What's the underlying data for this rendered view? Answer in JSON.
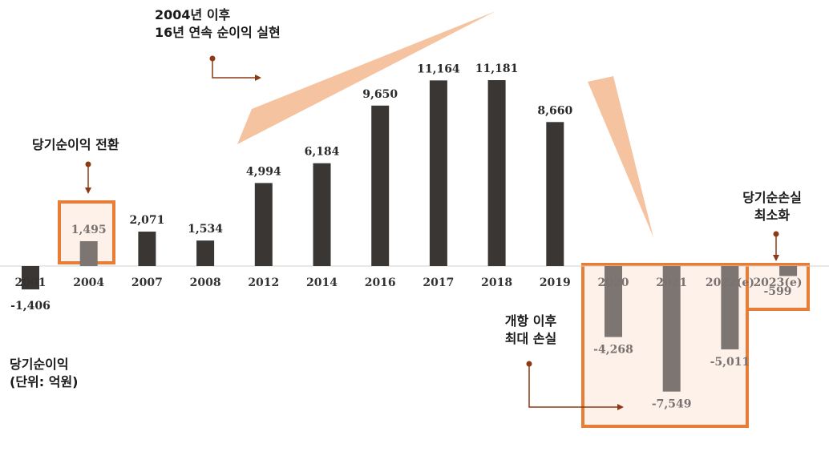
{
  "chart_data": {
    "type": "bar",
    "categories": [
      "2001",
      "2004",
      "2007",
      "2008",
      "2012",
      "2014",
      "2016",
      "2017",
      "2018",
      "2019",
      "2020",
      "2021",
      "2022(e)",
      "2023(e)"
    ],
    "values": [
      -1406,
      1495,
      2071,
      1534,
      4994,
      6184,
      9650,
      11164,
      11181,
      8660,
      -4268,
      -7549,
      -5011,
      -599
    ],
    "value_labels": [
      "-1,406",
      "1,495",
      "2,071",
      "1,534",
      "4,994",
      "6,184",
      "9,650",
      "11,164",
      "11,181",
      "8,660",
      "-4,268",
      "-7,549",
      "-5,011",
      "-599"
    ],
    "ylabel": "당기순이익\n(단위: 억원)",
    "grid": false
  },
  "annotations": {
    "since_2004": "2004년 이후\n16년 연속 순이익 실현",
    "turnaround": "당기순이익 전환",
    "max_loss": "개항 이후\n최대 손실",
    "min_loss": "당기순손실\n최소화"
  },
  "colors": {
    "bar_dark": "#3a3634",
    "bar_muted": "#7d7572",
    "highlight_border": "#e87d36",
    "highlight_fill": "#fdf1ea",
    "callout_wedge": "#f5c3a0",
    "arrow": "#8b3a14"
  }
}
